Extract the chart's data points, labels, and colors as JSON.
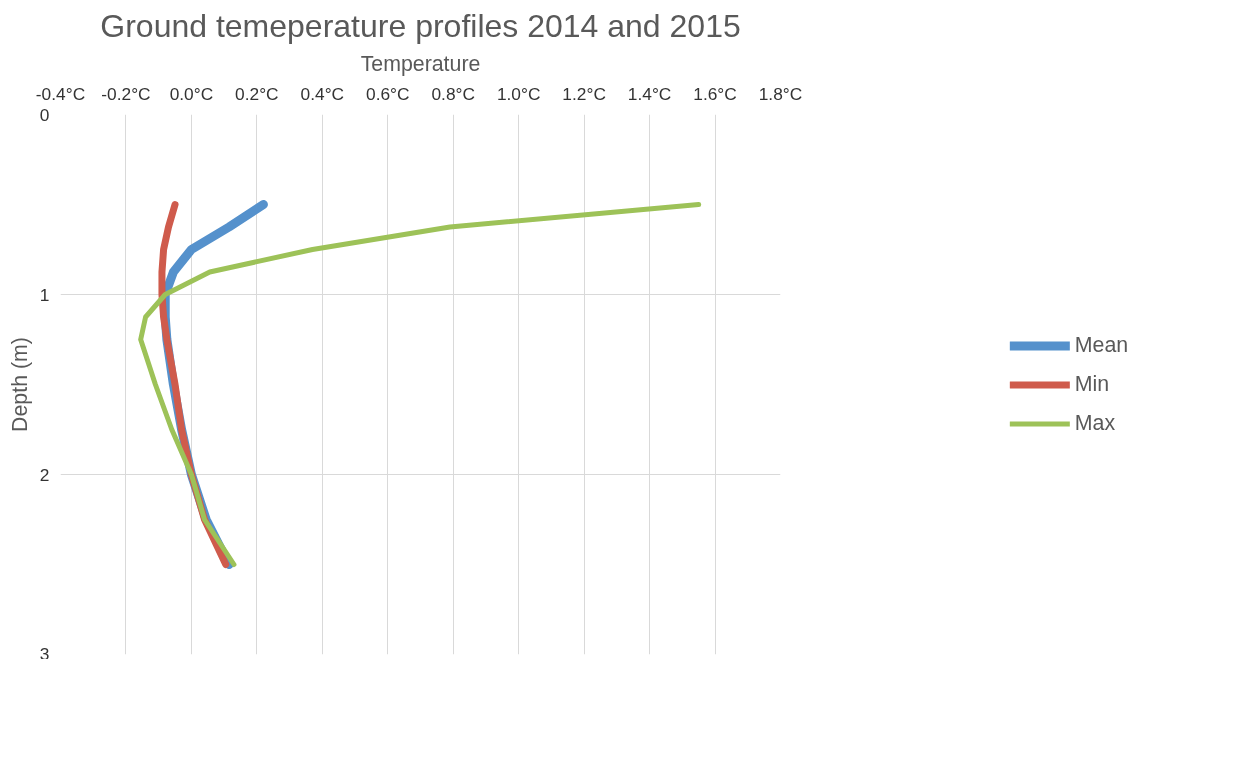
{
  "chart_data": {
    "type": "line",
    "title": "Ground temeperature profiles 2014 and 2015",
    "xlabel": "Temperature",
    "ylabel": "Depth (m)",
    "xlim": [
      -0.4,
      1.8
    ],
    "xticks": [
      {
        "value": -0.4,
        "label": "-0.4°C"
      },
      {
        "value": -0.2,
        "label": "-0.2°C"
      },
      {
        "value": 0,
        "label": "0.0°C"
      },
      {
        "value": 0.2,
        "label": "0.2°C"
      },
      {
        "value": 0.4,
        "label": "0.4°C"
      },
      {
        "value": 0.6,
        "label": "0.6°C"
      },
      {
        "value": 0.8,
        "label": "0.8°C"
      },
      {
        "value": 1.0,
        "label": "1.0°C"
      },
      {
        "value": 1.2,
        "label": "1.2°C"
      },
      {
        "value": 1.4,
        "label": "1.4°C"
      },
      {
        "value": 1.6,
        "label": "1.6°C"
      },
      {
        "value": 1.8,
        "label": "1.8°C"
      }
    ],
    "ylim": [
      3,
      0
    ],
    "yticks": [
      0,
      1,
      2,
      3
    ],
    "grid": true,
    "legend": "right",
    "marker": "none",
    "line_style": "solid",
    "series": [
      {
        "name": "Mean",
        "color": "#5591cc",
        "x": [
          0.22,
          0.115,
          0.0,
          -0.055,
          -0.08,
          -0.08,
          -0.075,
          -0.055,
          -0.03,
          0.0,
          0.045,
          0.115
        ],
        "values": [
          0.5,
          0.625,
          0.75,
          0.875,
          1,
          1.125,
          1.25,
          1.5,
          1.75,
          2,
          2.25,
          2.5
        ]
      },
      {
        "name": "Min",
        "color": "#cf5b4c",
        "x": [
          -0.05,
          -0.07,
          -0.085,
          -0.09,
          -0.09,
          -0.085,
          -0.075,
          -0.05,
          -0.03,
          0.0,
          0.04,
          0.105
        ],
        "values": [
          0.5,
          0.625,
          0.75,
          0.875,
          1,
          1.125,
          1.25,
          1.5,
          1.75,
          2,
          2.25,
          2.5
        ]
      },
      {
        "name": "Max",
        "color": "#9dc258",
        "x": [
          1.55,
          0.79,
          0.37,
          0.056,
          -0.08,
          -0.14,
          -0.155,
          -0.11,
          -0.06,
          0.0,
          0.04,
          0.13
        ],
        "values": [
          0.5,
          0.625,
          0.75,
          0.875,
          1,
          1.125,
          1.25,
          1.5,
          1.75,
          2,
          2.25,
          2.5
        ]
      }
    ]
  }
}
